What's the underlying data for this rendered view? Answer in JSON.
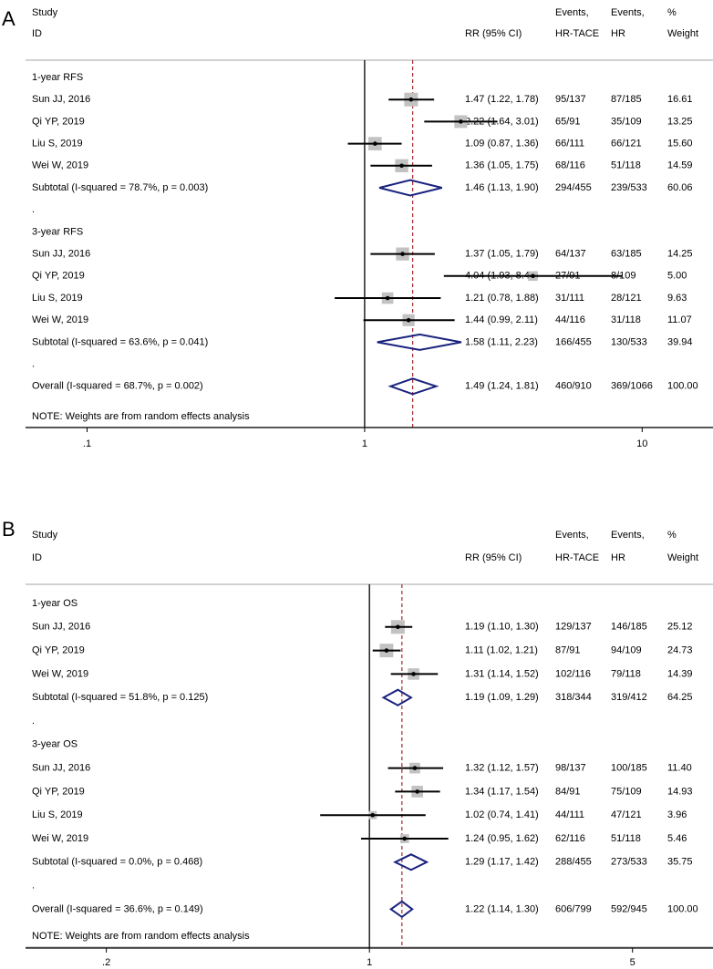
{
  "chart_data": [
    {
      "type": "forest",
      "panel_label": "A",
      "header": {
        "study": "Study",
        "id": "ID",
        "rr": "RR (95% CI)",
        "events1_top": "Events,",
        "events1_bottom": "HR-TACE",
        "events2_top": "Events,",
        "events2_bottom": "HR",
        "weight_top": "%",
        "weight_bottom": "Weight"
      },
      "note": "NOTE: Weights are from random effects analysis",
      "axis": {
        "scale": "log",
        "xlim": [
          0.06,
          18
        ],
        "ticks": [
          0.1,
          1,
          10
        ],
        "tick_labels": [
          ".1",
          "1",
          "10"
        ]
      },
      "null_line": 1,
      "overall_line": 1.49,
      "rows": [
        {
          "kind": "group",
          "label": "1-year RFS"
        },
        {
          "kind": "study",
          "label": "Sun JJ, 2016",
          "rr": 1.47,
          "lo": 1.22,
          "hi": 1.78,
          "text": "1.47 (1.22, 1.78)",
          "e1": "95/137",
          "e2": "87/185",
          "w": "16.61"
        },
        {
          "kind": "study",
          "label": "Qi YP, 2019",
          "rr": 2.22,
          "lo": 1.64,
          "hi": 3.01,
          "text": "2.22 (1.64, 3.01)",
          "e1": "65/91",
          "e2": "35/109",
          "w": "13.25"
        },
        {
          "kind": "study",
          "label": "Liu S, 2019",
          "rr": 1.09,
          "lo": 0.87,
          "hi": 1.36,
          "text": "1.09 (0.87, 1.36)",
          "e1": "66/111",
          "e2": "66/121",
          "w": "15.60"
        },
        {
          "kind": "study",
          "label": "Wei W, 2019",
          "rr": 1.36,
          "lo": 1.05,
          "hi": 1.75,
          "text": "1.36 (1.05, 1.75)",
          "e1": "68/116",
          "e2": "51/118",
          "w": "14.59"
        },
        {
          "kind": "subtotal",
          "label": "Subtotal  (I-squared = 78.7%, p = 0.003)",
          "rr": 1.46,
          "lo": 1.13,
          "hi": 1.9,
          "text": "1.46 (1.13, 1.90)",
          "e1": "294/455",
          "e2": "239/533",
          "w": "60.06"
        },
        {
          "kind": "dot",
          "label": "."
        },
        {
          "kind": "group",
          "label": "3-year RFS"
        },
        {
          "kind": "study",
          "label": "Sun JJ, 2016",
          "rr": 1.37,
          "lo": 1.05,
          "hi": 1.79,
          "text": "1.37 (1.05, 1.79)",
          "e1": "64/137",
          "e2": "63/185",
          "w": "14.25"
        },
        {
          "kind": "study",
          "label": "Qi YP, 2019",
          "rr": 4.04,
          "lo": 1.93,
          "hi": 8.46,
          "text": "4.04 (1.93, 8.46)",
          "e1": "27/91",
          "e2": "8/109",
          "w": "5.00"
        },
        {
          "kind": "study",
          "label": "Liu S, 2019",
          "rr": 1.21,
          "lo": 0.78,
          "hi": 1.88,
          "text": "1.21 (0.78, 1.88)",
          "e1": "31/111",
          "e2": "28/121",
          "w": "9.63"
        },
        {
          "kind": "study",
          "label": "Wei W, 2019",
          "rr": 1.44,
          "lo": 0.99,
          "hi": 2.11,
          "text": "1.44 (0.99, 2.11)",
          "e1": "44/116",
          "e2": "31/118",
          "w": "11.07"
        },
        {
          "kind": "subtotal",
          "label": "Subtotal  (I-squared = 63.6%, p = 0.041)",
          "rr": 1.58,
          "lo": 1.11,
          "hi": 2.23,
          "text": "1.58 (1.11, 2.23)",
          "e1": "166/455",
          "e2": "130/533",
          "w": "39.94"
        },
        {
          "kind": "dot",
          "label": "."
        },
        {
          "kind": "subtotal",
          "label": "Overall  (I-squared = 68.7%, p = 0.002)",
          "rr": 1.49,
          "lo": 1.24,
          "hi": 1.81,
          "text": "1.49 (1.24, 1.81)",
          "e1": "460/910",
          "e2": "369/1066",
          "w": "100.00"
        }
      ]
    },
    {
      "type": "forest",
      "panel_label": "B",
      "header": {
        "study": "Study",
        "id": "ID",
        "rr": "RR (95% CI)",
        "events1_top": "Events,",
        "events1_bottom": "HR-TACE",
        "events2_top": "Events,",
        "events2_bottom": "HR",
        "weight_top": "%",
        "weight_bottom": "Weight"
      },
      "note": "NOTE: Weights are from random effects analysis",
      "axis": {
        "scale": "log",
        "xlim": [
          0.122,
          8.18
        ],
        "ticks": [
          0.2,
          1,
          5
        ],
        "tick_labels": [
          ".2",
          "1",
          "5"
        ]
      },
      "null_line": 1,
      "overall_line": 1.22,
      "rows": [
        {
          "kind": "group",
          "label": "1-year OS"
        },
        {
          "kind": "study",
          "label": "Sun JJ, 2016",
          "rr": 1.19,
          "lo": 1.1,
          "hi": 1.3,
          "text": "1.19 (1.10, 1.30)",
          "e1": "129/137",
          "e2": "146/185",
          "w": "25.12"
        },
        {
          "kind": "study",
          "label": "Qi YP, 2019",
          "rr": 1.11,
          "lo": 1.02,
          "hi": 1.21,
          "text": "1.11 (1.02, 1.21)",
          "e1": "87/91",
          "e2": "94/109",
          "w": "24.73"
        },
        {
          "kind": "study",
          "label": "Wei W, 2019",
          "rr": 1.31,
          "lo": 1.14,
          "hi": 1.52,
          "text": "1.31 (1.14, 1.52)",
          "e1": "102/116",
          "e2": "79/118",
          "w": "14.39"
        },
        {
          "kind": "subtotal",
          "label": "Subtotal  (I-squared = 51.8%, p = 0.125)",
          "rr": 1.19,
          "lo": 1.09,
          "hi": 1.29,
          "text": "1.19 (1.09, 1.29)",
          "e1": "318/344",
          "e2": "319/412",
          "w": "64.25"
        },
        {
          "kind": "dot",
          "label": "."
        },
        {
          "kind": "group",
          "label": "3-year OS"
        },
        {
          "kind": "study",
          "label": "Sun JJ, 2016",
          "rr": 1.32,
          "lo": 1.12,
          "hi": 1.57,
          "text": "1.32 (1.12, 1.57)",
          "e1": "98/137",
          "e2": "100/185",
          "w": "11.40"
        },
        {
          "kind": "study",
          "label": "Qi YP, 2019",
          "rr": 1.34,
          "lo": 1.17,
          "hi": 1.54,
          "text": "1.34 (1.17, 1.54)",
          "e1": "84/91",
          "e2": "75/109",
          "w": "14.93"
        },
        {
          "kind": "study",
          "label": "Liu S, 2019",
          "rr": 1.02,
          "lo": 0.74,
          "hi": 1.41,
          "text": "1.02 (0.74, 1.41)",
          "e1": "44/111",
          "e2": "47/121",
          "w": "3.96"
        },
        {
          "kind": "study",
          "label": "Wei W, 2019",
          "rr": 1.24,
          "lo": 0.95,
          "hi": 1.62,
          "text": "1.24 (0.95, 1.62)",
          "e1": "62/116",
          "e2": "51/118",
          "w": "5.46"
        },
        {
          "kind": "subtotal",
          "label": "Subtotal  (I-squared = 0.0%, p = 0.468)",
          "rr": 1.29,
          "lo": 1.17,
          "hi": 1.42,
          "text": "1.29 (1.17, 1.42)",
          "e1": "288/455",
          "e2": "273/533",
          "w": "35.75"
        },
        {
          "kind": "dot",
          "label": "."
        },
        {
          "kind": "subtotal",
          "label": "Overall  (I-squared = 36.6%, p = 0.149)",
          "rr": 1.22,
          "lo": 1.14,
          "hi": 1.3,
          "text": "1.22 (1.14, 1.30)",
          "e1": "606/799",
          "e2": "592/945",
          "w": "100.00"
        }
      ]
    }
  ]
}
